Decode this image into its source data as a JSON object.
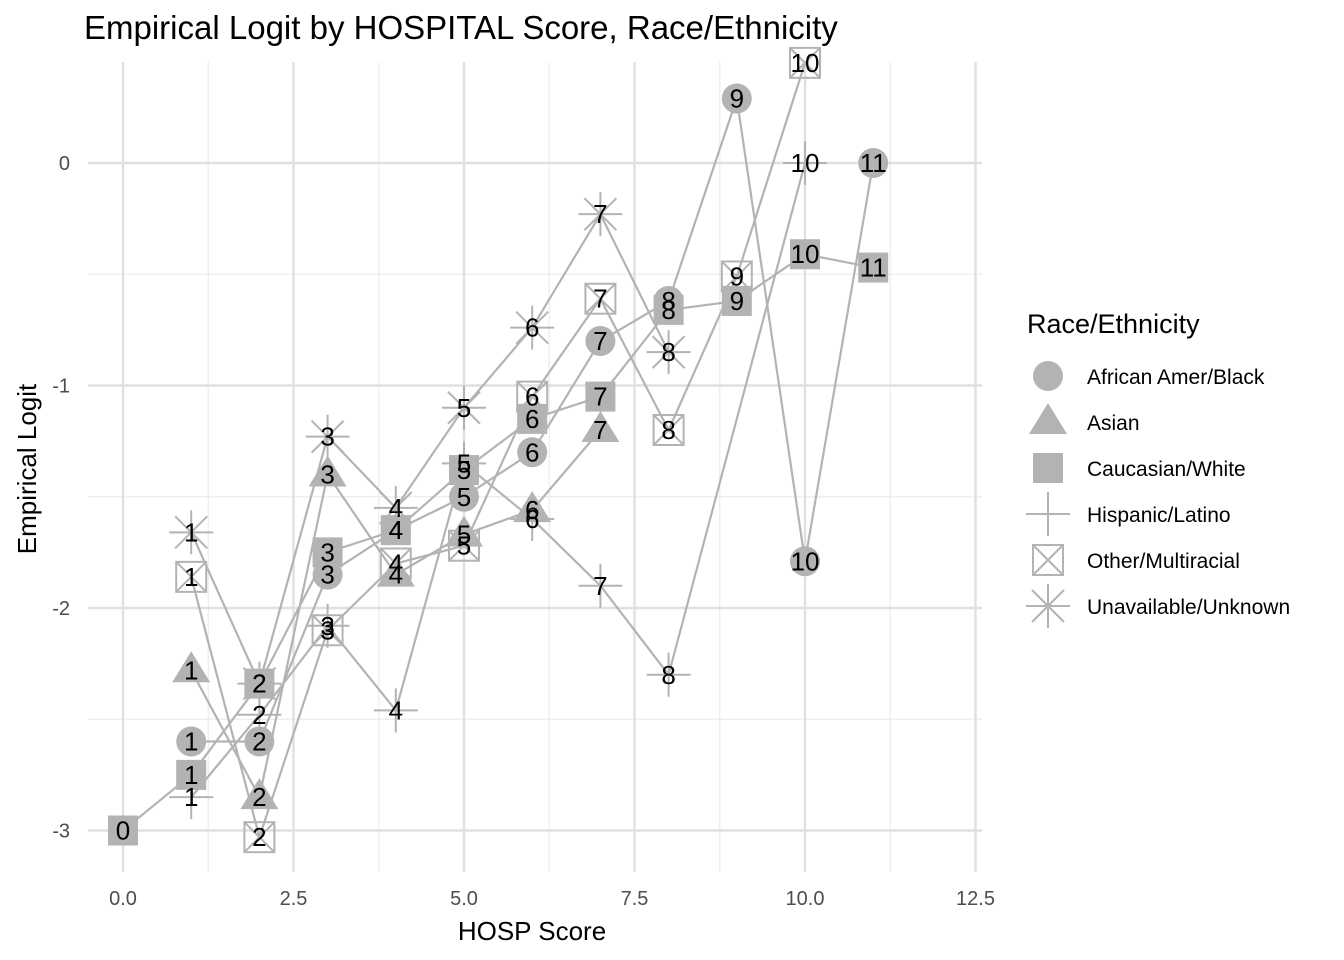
{
  "chart_data": {
    "type": "line",
    "title": "Empirical Logit by HOSPITAL Score, Race/Ethnicity",
    "xlabel": "HOSP Score",
    "ylabel": "Empirical Logit",
    "xlim": [
      0,
      12.5
    ],
    "ylim": [
      -3,
      0.3
    ],
    "x_ticks": [
      "0.0",
      "2.5",
      "5.0",
      "7.5",
      "10.0",
      "12.5"
    ],
    "y_ticks": [
      "-3",
      "-2",
      "-1",
      "0"
    ],
    "grid": true,
    "legend": {
      "title": "Race/Ethnicity",
      "position": "right"
    },
    "series": [
      {
        "name": "African Amer/Black",
        "shape": "circle",
        "x": [
          1,
          2,
          3,
          4,
          5,
          6,
          7,
          8,
          9,
          10,
          11
        ],
        "y": [
          -2.6,
          -2.6,
          -1.85,
          -1.65,
          -1.5,
          -1.3,
          -0.8,
          -0.62,
          0.29,
          -1.79,
          0.0
        ],
        "labels": [
          "1",
          "2",
          "3",
          "4",
          "5",
          "6",
          "7",
          "8",
          "9",
          "10",
          "11"
        ]
      },
      {
        "name": "Asian",
        "shape": "triangle",
        "x": [
          1,
          2,
          3,
          4,
          5,
          6,
          7
        ],
        "y": [
          -2.28,
          -2.85,
          -1.4,
          -1.85,
          -1.67,
          -1.56,
          -1.2
        ],
        "labels": [
          "1",
          "2",
          "3",
          "4",
          "5",
          "6",
          "7"
        ]
      },
      {
        "name": "Caucasian/White",
        "shape": "square",
        "x": [
          0,
          1,
          2,
          3,
          4,
          5,
          6,
          7,
          8,
          9,
          10,
          11
        ],
        "y": [
          -3.0,
          -2.75,
          -2.34,
          -1.75,
          -1.65,
          -1.38,
          -1.15,
          -1.05,
          -0.66,
          -0.62,
          -0.41,
          -0.47
        ],
        "labels": [
          "0",
          "1",
          "2",
          "3",
          "4",
          "5",
          "6",
          "7",
          "8",
          "9",
          "10",
          "11"
        ]
      },
      {
        "name": "Hispanic/Latino",
        "shape": "plus",
        "x": [
          1,
          2,
          3,
          4,
          5,
          6,
          7,
          8,
          10
        ],
        "y": [
          -2.85,
          -2.48,
          -2.08,
          -2.46,
          -1.35,
          -1.6,
          -1.9,
          -2.3,
          0.0
        ],
        "labels": [
          "1",
          "2",
          "3",
          "4",
          "5",
          "6",
          "7",
          "8",
          "10"
        ]
      },
      {
        "name": "Other/Multiracial",
        "shape": "boxx",
        "x": [
          1,
          2,
          3,
          4,
          5,
          6,
          7,
          8,
          9,
          10
        ],
        "y": [
          -1.86,
          -3.03,
          -2.1,
          -1.8,
          -1.72,
          -1.05,
          -0.61,
          -1.2,
          -0.51,
          0.45
        ],
        "labels": [
          "1",
          "2",
          "3",
          "4",
          "5",
          "6",
          "7",
          "8",
          "9",
          "10"
        ]
      },
      {
        "name": "Unavailable/Unknown",
        "shape": "asterisk",
        "x": [
          1,
          2,
          3,
          4,
          5,
          6,
          7,
          8
        ],
        "y": [
          -1.66,
          -2.34,
          -1.23,
          -1.55,
          -1.1,
          -0.74,
          -0.23,
          -0.85
        ],
        "labels": [
          "1",
          "2",
          "3",
          "4",
          "5",
          "6",
          "7",
          "8"
        ]
      }
    ]
  }
}
